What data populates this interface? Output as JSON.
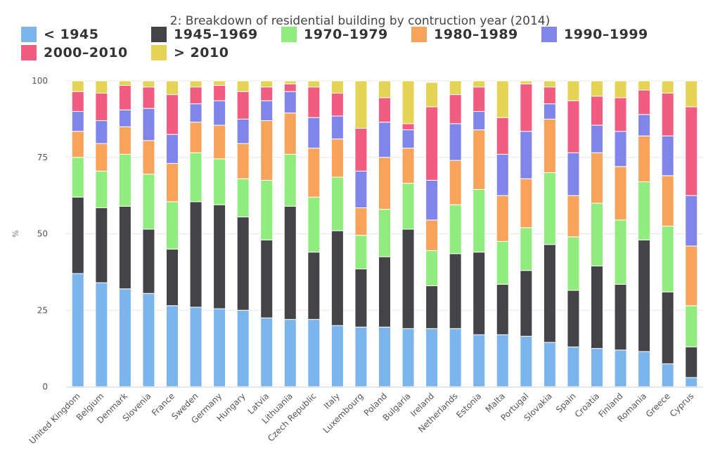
{
  "chart_data": {
    "type": "bar",
    "stacked": true,
    "title": "2: Breakdown of residential building by contruction year (2014)",
    "xlabel": "",
    "ylabel": "%",
    "ylim": [
      0,
      100
    ],
    "yticks": [
      0,
      25,
      50,
      75,
      100
    ],
    "grid": true,
    "legend_position": "top-left",
    "categories": [
      "United Kingdom",
      "Belgium",
      "Denmark",
      "Slovenia",
      "France",
      "Sweden",
      "Germany",
      "Hungary",
      "Latvia",
      "Lithuania",
      "Czech Republic",
      "Italy",
      "Luxembourg",
      "Poland",
      "Bulgaria",
      "Ireland",
      "Netherlands",
      "Estonia",
      "Malta",
      "Portugal",
      "Slovakia",
      "Spain",
      "Croatia",
      "Finland",
      "Romania",
      "Greece",
      "Cyprus"
    ],
    "series": [
      {
        "name": "< 1945",
        "color": "#7cb5ec",
        "values": [
          37,
          34,
          32,
          30.5,
          26.5,
          26,
          25.5,
          25,
          22.5,
          22,
          22,
          20,
          19.5,
          19.5,
          19,
          19,
          19,
          17,
          17,
          16.5,
          14.5,
          13,
          12.5,
          12,
          11.5,
          7.5,
          3
        ]
      },
      {
        "name": "1945–1969",
        "color": "#434348",
        "values": [
          25,
          24.5,
          27,
          21,
          18.5,
          34.5,
          34,
          30.5,
          25.5,
          37,
          22,
          31,
          19,
          23,
          32.5,
          14,
          24.5,
          27,
          16.5,
          21.5,
          32,
          18.5,
          27,
          21.5,
          36.5,
          23.5,
          10
        ]
      },
      {
        "name": "1970–1979",
        "color": "#90ed7d",
        "values": [
          13,
          12,
          17,
          18,
          15.5,
          16,
          15,
          12.5,
          19.5,
          17,
          18,
          17.5,
          11,
          15.5,
          15,
          11.5,
          16,
          20.5,
          14,
          14,
          23.5,
          17.5,
          20.5,
          21,
          19,
          21.5,
          13.5
        ]
      },
      {
        "name": "1980–1989",
        "color": "#f7a35c",
        "values": [
          8.5,
          9,
          9,
          11,
          12.5,
          10,
          11,
          11.5,
          19.5,
          13.5,
          16,
          12.5,
          9,
          17,
          11.5,
          10,
          14.5,
          19.5,
          15,
          16,
          17.5,
          13.5,
          16.5,
          17.5,
          15,
          16.5,
          19.5
        ]
      },
      {
        "name": "1990–1999",
        "color": "#8085e9",
        "values": [
          6.5,
          7.5,
          5.5,
          10.5,
          9.5,
          6,
          8,
          8,
          6.5,
          7,
          10,
          7.5,
          12,
          11.5,
          6,
          13,
          12,
          6,
          13.5,
          15.5,
          5,
          14,
          9,
          11.5,
          7,
          13,
          16.5
        ]
      },
      {
        "name": "2000–2010",
        "color": "#f15c80",
        "values": [
          6.5,
          9,
          8,
          7,
          13,
          5.5,
          5,
          9,
          4.5,
          2.5,
          10,
          7.5,
          14,
          8,
          2,
          24,
          9.5,
          8,
          12,
          15.5,
          5.5,
          17,
          9.5,
          11,
          8,
          14,
          29
        ]
      },
      {
        "name": "> 2010",
        "color": "#e4d354",
        "values": [
          3.5,
          4,
          1.5,
          2,
          4.5,
          2,
          1.5,
          3.5,
          2,
          1,
          2,
          4,
          15.5,
          5.5,
          14,
          8,
          4.5,
          2,
          12,
          1,
          2,
          6.5,
          5,
          5.5,
          3,
          4,
          8.5
        ]
      }
    ]
  }
}
